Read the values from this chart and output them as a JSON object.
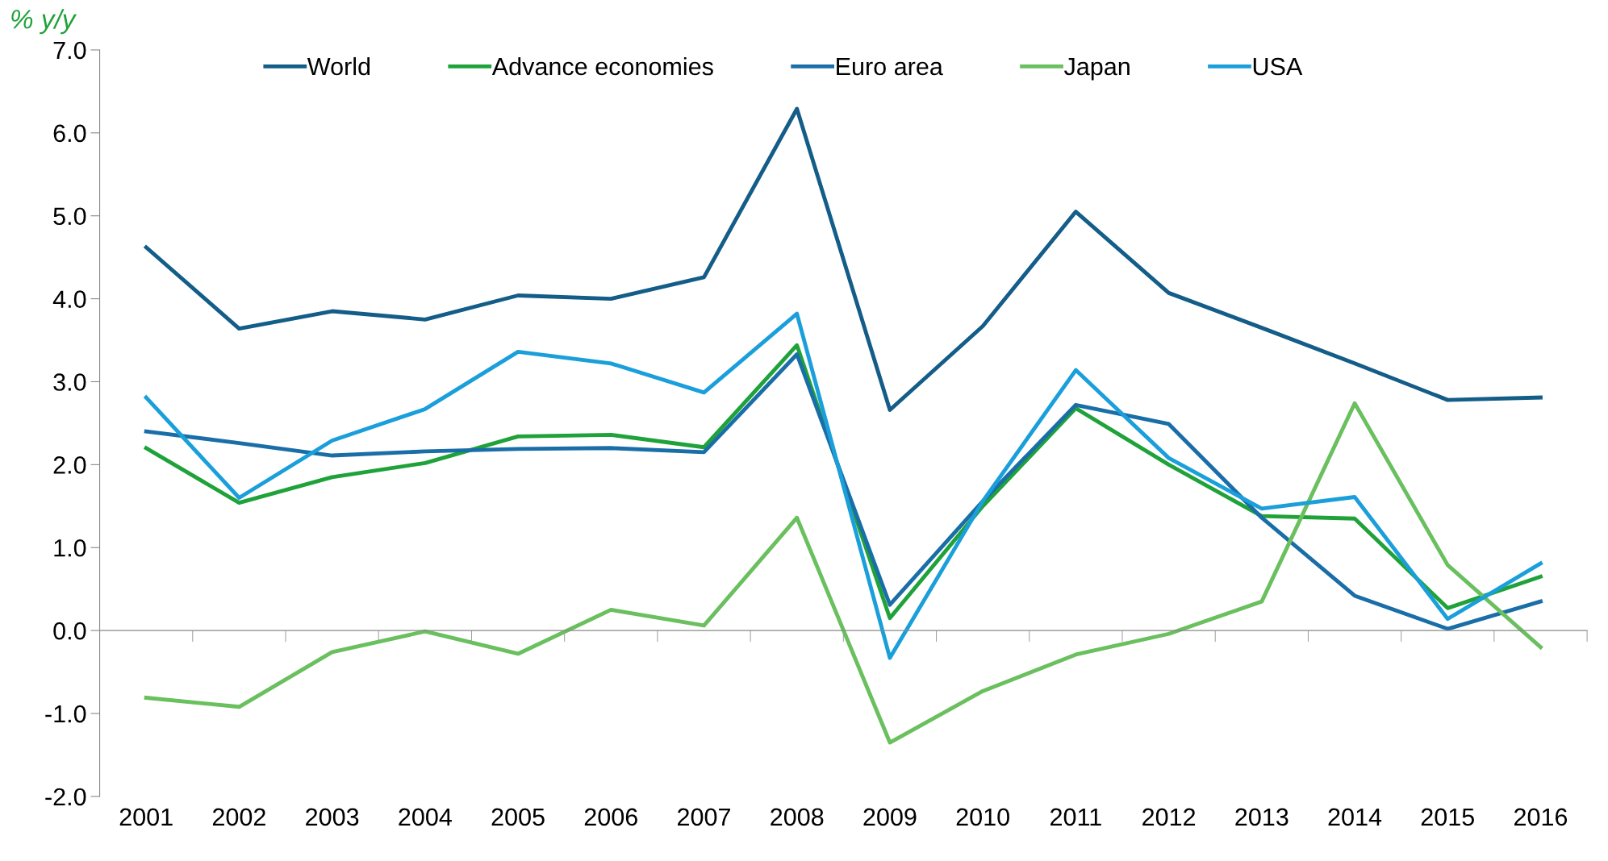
{
  "chart_data": {
    "type": "line",
    "ylabel": "% y/y",
    "categories": [
      "2001",
      "2002",
      "2003",
      "2004",
      "2005",
      "2006",
      "2007",
      "2008",
      "2009",
      "2010",
      "2011",
      "2012",
      "2013",
      "2014",
      "2015",
      "2016"
    ],
    "series": [
      {
        "name": "World",
        "color": "#135d88",
        "values": [
          4.62,
          3.64,
          3.85,
          3.75,
          4.04,
          4.0,
          4.26,
          6.29,
          2.66,
          3.67,
          5.05,
          4.07,
          3.65,
          3.22,
          2.78,
          2.81
        ]
      },
      {
        "name": "Advance economies",
        "color": "#1fa23a",
        "values": [
          2.2,
          1.54,
          1.85,
          2.02,
          2.34,
          2.36,
          2.21,
          3.44,
          0.15,
          1.5,
          2.68,
          2.0,
          1.38,
          1.35,
          0.27,
          0.65
        ]
      },
      {
        "name": "Euro area",
        "color": "#1a6ea8",
        "values": [
          2.4,
          2.26,
          2.11,
          2.16,
          2.19,
          2.2,
          2.15,
          3.33,
          0.31,
          1.56,
          2.72,
          2.49,
          1.36,
          0.42,
          0.02,
          0.35
        ]
      },
      {
        "name": "Japan",
        "color": "#6abf5e",
        "values": [
          -0.81,
          -0.92,
          -0.26,
          -0.01,
          -0.28,
          0.25,
          0.06,
          1.36,
          -1.35,
          -0.73,
          -0.29,
          -0.04,
          0.35,
          2.74,
          0.79,
          -0.2
        ]
      },
      {
        "name": "USA",
        "color": "#1a9fdb",
        "values": [
          2.81,
          1.6,
          2.29,
          2.67,
          3.36,
          3.22,
          2.87,
          3.82,
          -0.33,
          1.56,
          3.14,
          2.08,
          1.47,
          1.61,
          0.14,
          0.81
        ]
      }
    ],
    "ylim": [
      -2.0,
      7.0
    ],
    "yticks": [
      {
        "value": -2,
        "label": "-2.0"
      },
      {
        "value": -1,
        "label": "-1.0"
      },
      {
        "value": 0,
        "label": "0.0"
      },
      {
        "value": 1,
        "label": "1.0"
      },
      {
        "value": 2,
        "label": "2.0"
      },
      {
        "value": 3,
        "label": "3.0"
      },
      {
        "value": 4,
        "label": "4.0"
      },
      {
        "value": 5,
        "label": "5.0"
      },
      {
        "value": 6,
        "label": "6.0"
      },
      {
        "value": 7,
        "label": "7.0"
      }
    ],
    "legend": "top",
    "marker": "none",
    "line_style": "solid"
  }
}
